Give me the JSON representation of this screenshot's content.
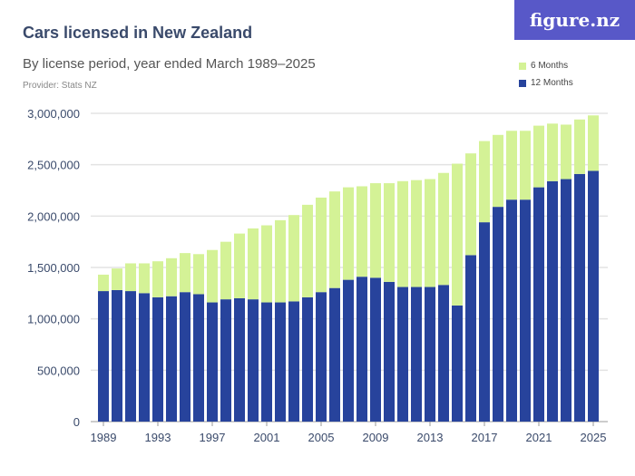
{
  "header": {
    "title": "Cars licensed in New Zealand",
    "subtitle": "By license period, year ended March 1989–2025",
    "provider": "Provider: Stats NZ",
    "logo": "figure.nz"
  },
  "colors": {
    "twelve": "#27439c",
    "six": "#d4f296",
    "grid": "#e3e3e3"
  },
  "chart_data": {
    "type": "bar",
    "stacked": true,
    "title": "Cars licensed in New Zealand",
    "xlabel": "",
    "ylabel": "",
    "ylim": [
      0,
      3000000
    ],
    "yticks": [
      0,
      500000,
      1000000,
      1500000,
      2000000,
      2500000,
      3000000
    ],
    "ytick_labels": [
      "0",
      "500,000",
      "1,000,000",
      "1,500,000",
      "2,000,000",
      "2,500,000",
      "3,000,000"
    ],
    "xtick_labels": [
      "1989",
      "1993",
      "1997",
      "2001",
      "2005",
      "2009",
      "2013",
      "2017",
      "2021",
      "2025"
    ],
    "legend_position": "top-right",
    "categories": [
      1989,
      1990,
      1991,
      1992,
      1993,
      1994,
      1995,
      1996,
      1997,
      1998,
      1999,
      2000,
      2001,
      2002,
      2003,
      2004,
      2005,
      2006,
      2007,
      2008,
      2009,
      2010,
      2011,
      2012,
      2013,
      2014,
      2015,
      2016,
      2017,
      2018,
      2019,
      2020,
      2021,
      2022,
      2023,
      2024,
      2025
    ],
    "series": [
      {
        "name": "12 Months",
        "values": [
          1270000,
          1280000,
          1270000,
          1250000,
          1210000,
          1220000,
          1260000,
          1240000,
          1160000,
          1190000,
          1200000,
          1190000,
          1160000,
          1160000,
          1170000,
          1210000,
          1260000,
          1300000,
          1380000,
          1410000,
          1400000,
          1360000,
          1310000,
          1310000,
          1310000,
          1330000,
          1130000,
          1620000,
          1940000,
          2090000,
          2160000,
          2160000,
          2280000,
          2340000,
          2360000,
          2410000,
          2440000
        ]
      },
      {
        "name": "6 Months",
        "values": [
          160000,
          210000,
          270000,
          290000,
          350000,
          370000,
          380000,
          390000,
          510000,
          560000,
          630000,
          690000,
          750000,
          800000,
          840000,
          900000,
          920000,
          940000,
          900000,
          880000,
          920000,
          960000,
          1030000,
          1040000,
          1050000,
          1090000,
          1380000,
          990000,
          790000,
          700000,
          670000,
          670000,
          600000,
          560000,
          530000,
          530000,
          540000
        ]
      }
    ]
  }
}
